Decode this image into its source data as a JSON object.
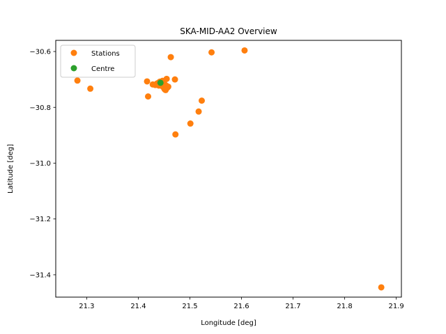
{
  "chart_data": {
    "type": "scatter",
    "title": "SKA-MID-AA2 Overview",
    "xlabel": "Longitude [deg]",
    "ylabel": "Latitude [deg]",
    "xlim": [
      21.24,
      21.91
    ],
    "ylim": [
      -31.48,
      -30.56
    ],
    "xticks": [
      21.3,
      21.4,
      21.5,
      21.6,
      21.7,
      21.8,
      21.9
    ],
    "xtick_labels": [
      "21.3",
      "21.4",
      "21.5",
      "21.6",
      "21.7",
      "21.8",
      "21.9"
    ],
    "yticks": [
      -30.6,
      -30.8,
      -31.0,
      -31.2,
      -31.4
    ],
    "ytick_labels": [
      "−30.6",
      "−30.8",
      "−31.0",
      "−31.2",
      "−31.4"
    ],
    "grid": false,
    "legend_position": "top-left",
    "series": [
      {
        "name": "Stations",
        "color": "#ff7f0e",
        "points": [
          [
            21.282,
            -30.704
          ],
          [
            21.307,
            -30.733
          ],
          [
            21.417,
            -30.707
          ],
          [
            21.419,
            -30.761
          ],
          [
            21.428,
            -30.718
          ],
          [
            21.433,
            -30.72
          ],
          [
            21.436,
            -30.715
          ],
          [
            21.439,
            -30.712
          ],
          [
            21.44,
            -30.722
          ],
          [
            21.442,
            -30.708
          ],
          [
            21.445,
            -30.718
          ],
          [
            21.447,
            -30.705
          ],
          [
            21.448,
            -30.727
          ],
          [
            21.45,
            -30.712
          ],
          [
            21.451,
            -30.735
          ],
          [
            21.453,
            -30.738
          ],
          [
            21.454,
            -30.722
          ],
          [
            21.455,
            -30.698
          ],
          [
            21.456,
            -30.73
          ],
          [
            21.458,
            -30.726
          ],
          [
            21.463,
            -30.62
          ],
          [
            21.471,
            -30.7
          ],
          [
            21.472,
            -30.897
          ],
          [
            21.501,
            -30.858
          ],
          [
            21.517,
            -30.815
          ],
          [
            21.523,
            -30.776
          ],
          [
            21.542,
            -30.603
          ],
          [
            21.606,
            -30.596
          ],
          [
            21.871,
            -31.445
          ]
        ]
      },
      {
        "name": "Centre",
        "color": "#2ca02c",
        "points": [
          [
            21.443,
            -30.712
          ]
        ]
      }
    ]
  }
}
